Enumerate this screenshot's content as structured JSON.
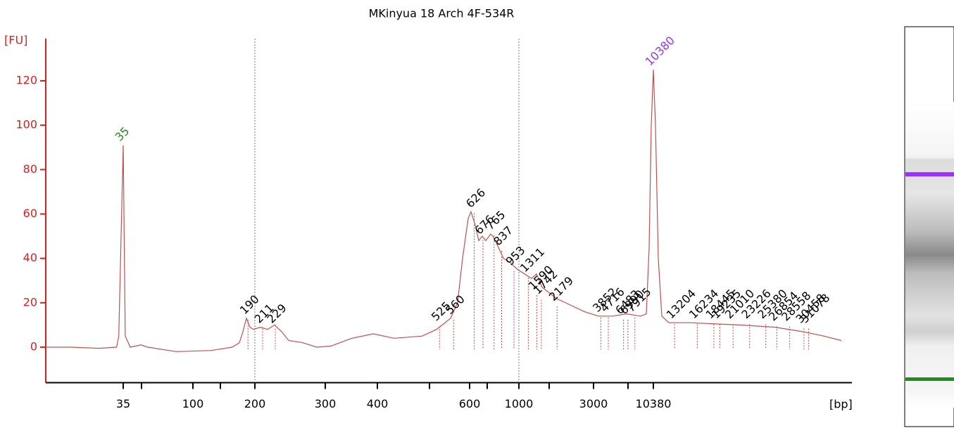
{
  "chart_data": {
    "type": "line",
    "title": "MKinyua 18 Arch 4F-534R",
    "y_label": "[FU]",
    "x_label": "[bp]",
    "color": "#c0504d",
    "axis_color": "#d62020",
    "ylim": [
      -16,
      139
    ],
    "yticks": [
      0,
      20,
      40,
      60,
      80,
      100,
      120
    ],
    "xlim": [
      0,
      35450
    ],
    "xticks": [
      35,
      {
        "value": 50,
        "label": null
      },
      100,
      {
        "value": 150,
        "label": null
      },
      200,
      300,
      400,
      {
        "value": 500,
        "label": null
      },
      600,
      {
        "value": 700,
        "label": null
      },
      1000,
      {
        "value": 2000,
        "label": null
      },
      3000,
      {
        "value": 7000,
        "label": null
      },
      10380
    ],
    "vlines": [
      200,
      1000
    ],
    "x": [
      0,
      11,
      24,
      32,
      33,
      35,
      36.7,
      40.8,
      49.4,
      56.2,
      83.6,
      133,
      167,
      177.6,
      182.7,
      187.8,
      192.9,
      198,
      208,
      218,
      228,
      238,
      248,
      268,
      288,
      310.8,
      351,
      392,
      432,
      486,
      517.5,
      552.6,
      570,
      582.5,
      596.5,
      608,
      632,
      652,
      672,
      692,
      733,
      753,
      787,
      853,
      920,
      987,
      1186,
      1419,
      1582,
      1768,
      2159,
      2476,
      2794,
      3571,
      5204,
      6837,
      8690,
      9441,
      9817,
      10098,
      10380,
      10662,
      11038,
      11507,
      12446,
      15263,
      21836,
      26531,
      30287,
      33104,
      35450
    ],
    "values": [
      0,
      0,
      -0.5,
      0,
      5,
      91,
      5,
      0,
      1,
      0,
      -2,
      -1.5,
      0,
      2,
      7,
      13,
      9,
      8,
      9,
      8,
      10,
      7,
      3,
      2,
      0,
      0.5,
      4,
      6,
      4,
      5,
      8,
      13,
      20,
      40,
      58,
      61,
      55,
      48,
      50,
      48,
      51,
      50,
      47,
      40,
      38,
      35,
      33,
      31,
      33,
      27,
      22,
      19,
      16,
      14,
      14,
      15,
      14,
      15,
      45,
      100,
      125,
      100,
      40,
      14,
      11,
      11,
      10,
      9,
      7,
      5,
      3
    ],
    "peaks": {
      "x": [
        35,
        190,
        211,
        229,
        525,
        560,
        626,
        676,
        765,
        837,
        953,
        1311,
        1590,
        1742,
        2179,
        3852,
        4716,
        6483,
        6990,
        7915,
        10380,
        13204,
        16234,
        18445,
        19235,
        21010,
        23226,
        25380,
        26854,
        28558,
        30458,
        31078
      ],
      "values": [
        91,
        13,
        9,
        9,
        10,
        13,
        61,
        49,
        51,
        44,
        35,
        32,
        24,
        22,
        19,
        14,
        14,
        13,
        13,
        14,
        125,
        11,
        11,
        11,
        11,
        11,
        11,
        11,
        10,
        10,
        9,
        9
      ],
      "colors": [
        "#1e8c1e",
        "#000000",
        "#000000",
        "#000000",
        "#000000",
        "#000000",
        "#000000",
        "#000000",
        "#000000",
        "#000000",
        "#000000",
        "#000000",
        "#000000",
        "#000000",
        "#000000",
        "#000000",
        "#000000",
        "#000000",
        "#000000",
        "#000000",
        "#9b30ff",
        "#000000",
        "#000000",
        "#000000",
        "#000000",
        "#000000",
        "#000000",
        "#000000",
        "#000000",
        "#000000",
        "#000000",
        "#000000"
      ]
    }
  }
}
